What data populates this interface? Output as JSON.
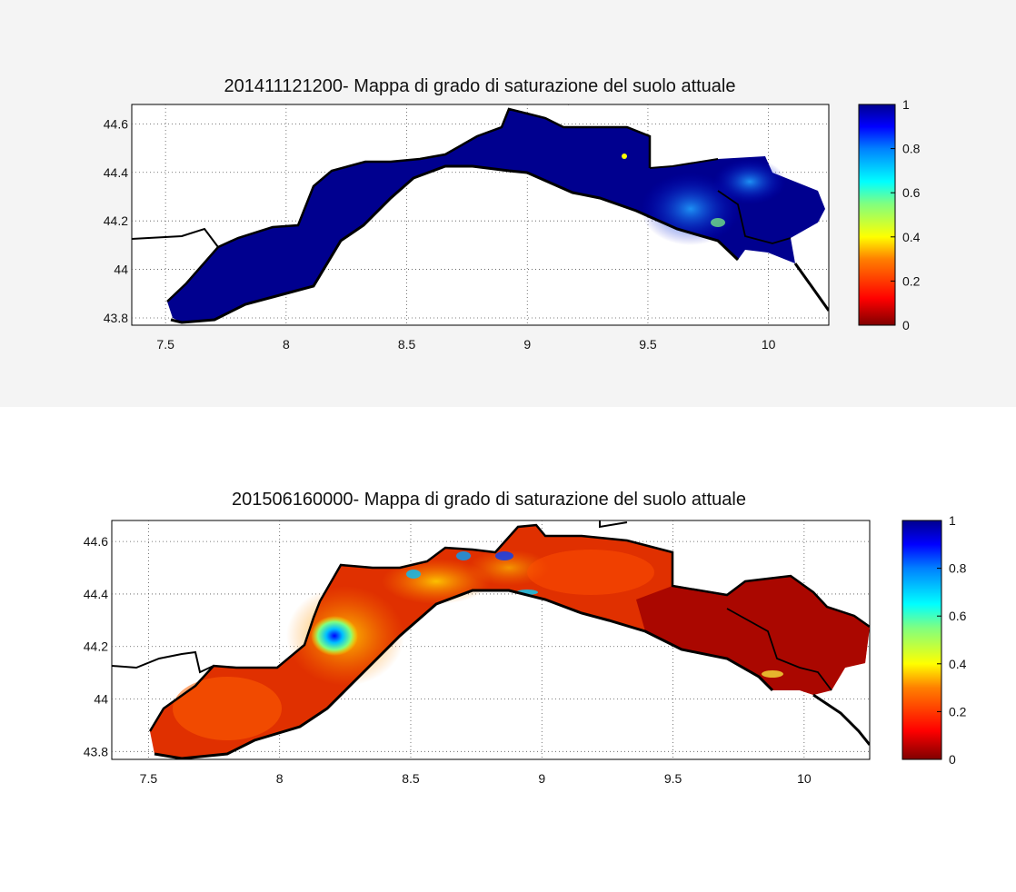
{
  "chart_data": [
    {
      "type": "heatmap",
      "title": "201411121200- Mappa di grado di saturazione del suolo attuale",
      "xticks": [
        "7.5",
        "8",
        "8.5",
        "9",
        "9.5",
        "10"
      ],
      "yticks": [
        "43.8",
        "44",
        "44.2",
        "44.4",
        "44.6"
      ],
      "xlim": [
        7.36,
        10.25
      ],
      "ylim": [
        43.77,
        44.68
      ],
      "grid": true,
      "colorbar": {
        "ticks": [
          "0",
          "0.2",
          "0.4",
          "0.6",
          "0.8",
          "1"
        ],
        "range": [
          0,
          1
        ],
        "colormap": "jet"
      },
      "dominant_value": 0.95
    },
    {
      "type": "heatmap",
      "title": "201506160000- Mappa di grado di saturazione del suolo attuale",
      "xticks": [
        "7.5",
        "8",
        "8.5",
        "9",
        "9.5",
        "10"
      ],
      "yticks": [
        "43.8",
        "44",
        "44.2",
        "44.4",
        "44.6"
      ],
      "xlim": [
        7.36,
        10.25
      ],
      "ylim": [
        43.77,
        44.68
      ],
      "grid": true,
      "colorbar": {
        "ticks": [
          "0",
          "0.2",
          "0.4",
          "0.6",
          "0.8",
          "1"
        ],
        "range": [
          0,
          1
        ],
        "colormap": "jet"
      },
      "dominant_value": 0.15
    }
  ],
  "colors": {
    "jet": [
      "#800000",
      "#ff0000",
      "#ff8000",
      "#ffff00",
      "#80ff80",
      "#00ffff",
      "#0080ff",
      "#0000ff",
      "#00008f"
    ]
  }
}
